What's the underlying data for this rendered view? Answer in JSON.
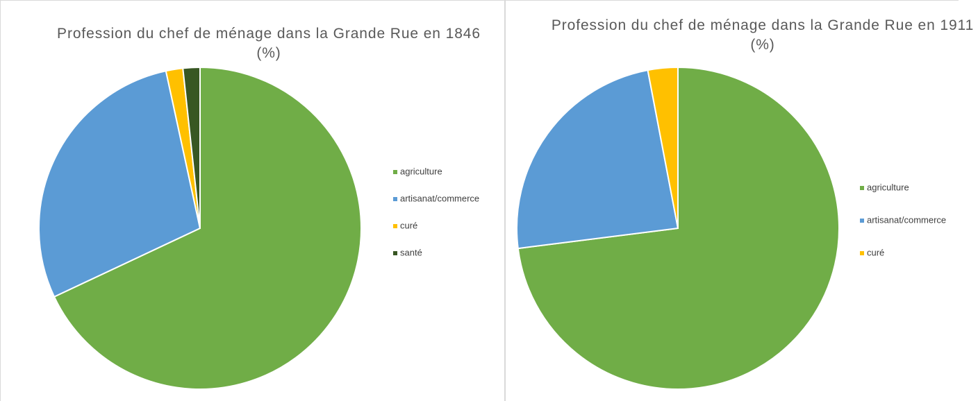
{
  "chart_data": [
    {
      "type": "pie",
      "title": "Profession du chef de ménage dans la Grande Rue en 1846 (%)",
      "categories": [
        "agriculture",
        "artisanat/commerce",
        "curé",
        "santé"
      ],
      "values": [
        68,
        28.6,
        1.7,
        1.7
      ],
      "colors": [
        "#70ad47",
        "#5b9bd5",
        "#ffc000",
        "#385723"
      ],
      "legend": "right"
    },
    {
      "type": "pie",
      "title": "Profession du chef de ménage dans la Grande Rue en 1911 (%)",
      "categories": [
        "agriculture",
        "artisanat/commerce",
        "curé"
      ],
      "values": [
        73,
        24,
        3
      ],
      "colors": [
        "#70ad47",
        "#5b9bd5",
        "#ffc000"
      ],
      "legend": "right"
    }
  ]
}
